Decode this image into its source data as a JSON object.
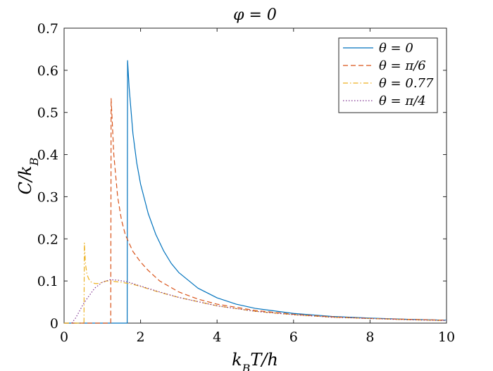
{
  "chart_data": {
    "type": "line",
    "title": "φ = 0",
    "xlabel": "k_B T/h",
    "ylabel": "C/k_B",
    "xlim": [
      0,
      10
    ],
    "ylim": [
      0,
      0.7
    ],
    "xticks": [
      0,
      2,
      4,
      6,
      8,
      10
    ],
    "xtick_labels": [
      "0",
      "2",
      "4",
      "6",
      "8",
      "10"
    ],
    "yticks": [
      0,
      0.1,
      0.2,
      0.3,
      0.4,
      0.5,
      0.6,
      0.7
    ],
    "ytick_labels": [
      "0",
      "0.1",
      "0.2",
      "0.3",
      "0.4",
      "0.5",
      "0.6",
      "0.7"
    ],
    "grid": false,
    "legend_position": "top-right",
    "series": [
      {
        "name": "θ = 0",
        "color": "#0072BD",
        "dash": "solid",
        "x": [
          0,
          1.65,
          1.66,
          1.7,
          1.8,
          1.9,
          2.0,
          2.2,
          2.4,
          2.6,
          2.8,
          3.0,
          3.5,
          4.0,
          4.5,
          5.0,
          6.0,
          7.0,
          8.0,
          9.0,
          10.0
        ],
        "y": [
          0,
          0,
          0.623,
          0.56,
          0.45,
          0.38,
          0.33,
          0.26,
          0.21,
          0.172,
          0.142,
          0.12,
          0.083,
          0.06,
          0.045,
          0.035,
          0.023,
          0.016,
          0.012,
          0.009,
          0.007
        ]
      },
      {
        "name": "θ = π/6",
        "color": "#D95319",
        "dash": "dashed",
        "x": [
          0,
          1.22,
          1.23,
          1.3,
          1.4,
          1.5,
          1.6,
          1.8,
          2.0,
          2.2,
          2.5,
          3.0,
          3.5,
          4.0,
          5.0,
          6.0,
          7.0,
          8.0,
          9.0,
          10.0
        ],
        "y": [
          0,
          0,
          0.533,
          0.4,
          0.3,
          0.245,
          0.21,
          0.17,
          0.145,
          0.125,
          0.1,
          0.074,
          0.057,
          0.045,
          0.03,
          0.021,
          0.015,
          0.011,
          0.009,
          0.007
        ]
      },
      {
        "name": "θ = 0.77",
        "color": "#EDB120",
        "dash": "dashdot",
        "x": [
          0,
          0.52,
          0.53,
          0.56,
          0.6,
          0.65,
          0.7,
          0.8,
          0.9,
          1.0,
          1.1,
          1.2,
          1.3,
          1.5,
          1.8,
          2.0,
          2.5,
          3.0,
          4.0,
          5.0,
          6.0,
          7.0,
          8.0,
          9.0,
          10.0
        ],
        "y": [
          0,
          0,
          0.19,
          0.14,
          0.115,
          0.104,
          0.098,
          0.094,
          0.094,
          0.097,
          0.1,
          0.1,
          0.099,
          0.097,
          0.092,
          0.087,
          0.073,
          0.061,
          0.041,
          0.028,
          0.02,
          0.014,
          0.011,
          0.008,
          0.006
        ]
      },
      {
        "name": "θ = π/4",
        "color": "#7E2F8E",
        "dash": "dotted",
        "x": [
          0.2,
          0.3,
          0.4,
          0.5,
          0.6,
          0.8,
          1.0,
          1.2,
          1.4,
          1.6,
          1.8,
          2.0,
          2.5,
          3.0,
          4.0,
          5.0,
          6.0,
          7.0,
          8.0,
          9.0,
          10.0
        ],
        "y": [
          0,
          0.012,
          0.028,
          0.045,
          0.058,
          0.083,
          0.097,
          0.103,
          0.102,
          0.099,
          0.094,
          0.088,
          0.074,
          0.061,
          0.041,
          0.028,
          0.02,
          0.014,
          0.011,
          0.008,
          0.006
        ]
      }
    ]
  }
}
